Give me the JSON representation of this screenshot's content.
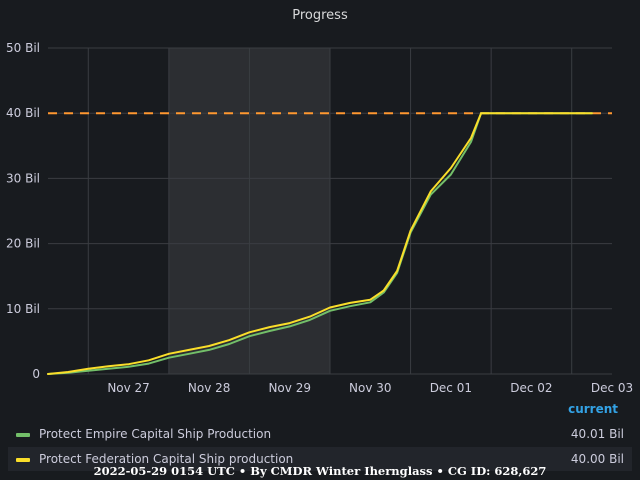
{
  "chart_data": {
    "type": "line",
    "title": "Progress",
    "x_ticks": [
      "Nov 27",
      "Nov 28",
      "Nov 29",
      "Nov 30",
      "Dec 01",
      "Dec 02",
      "Dec 03"
    ],
    "x_range": [
      "2021-11-26 12:00",
      "2021-12-03 12:00"
    ],
    "y_ticks": [
      "0",
      "10 Bil",
      "20 Bil",
      "30 Bil",
      "40 Bil",
      "50 Bil"
    ],
    "ylim": [
      0,
      50
    ],
    "y_unit": "Bil",
    "grid": true,
    "highlight_region": {
      "from": "2021-11-28 00:00",
      "to": "2021-11-30 00:00"
    },
    "threshold": {
      "value": 40,
      "style": "dashed",
      "color": "#FF9830"
    },
    "series": [
      {
        "name": "Protect Empire Capital Ship Production",
        "color": "#73BF69",
        "points": [
          [
            "2021-11-26 12:00",
            0
          ],
          [
            "2021-11-26 18:00",
            0.2
          ],
          [
            "2021-11-27 00:00",
            0.5
          ],
          [
            "2021-11-27 06:00",
            0.8
          ],
          [
            "2021-11-27 12:00",
            1.1
          ],
          [
            "2021-11-27 18:00",
            1.6
          ],
          [
            "2021-11-28 00:00",
            2.5
          ],
          [
            "2021-11-28 06:00",
            3.1
          ],
          [
            "2021-11-28 12:00",
            3.7
          ],
          [
            "2021-11-28 18:00",
            4.6
          ],
          [
            "2021-11-29 00:00",
            5.8
          ],
          [
            "2021-11-29 06:00",
            6.6
          ],
          [
            "2021-11-29 12:00",
            7.3
          ],
          [
            "2021-11-29 18:00",
            8.3
          ],
          [
            "2021-11-30 00:00",
            9.7
          ],
          [
            "2021-11-30 06:00",
            10.4
          ],
          [
            "2021-11-30 12:00",
            11.0
          ],
          [
            "2021-11-30 16:00",
            12.5
          ],
          [
            "2021-11-30 20:00",
            15.5
          ],
          [
            "2021-12-01 00:00",
            21.7
          ],
          [
            "2021-12-01 06:00",
            27.5
          ],
          [
            "2021-12-01 12:00",
            30.6
          ],
          [
            "2021-12-01 18:00",
            35.6
          ],
          [
            "2021-12-01 21:00",
            40.0
          ],
          [
            "2021-12-02 00:00",
            40.0
          ],
          [
            "2021-12-03 00:00",
            40.0
          ],
          [
            "2021-12-03 06:00",
            40.0
          ]
        ]
      },
      {
        "name": "Protect Federation Capital Ship production",
        "color": "#FADE2A",
        "points": [
          [
            "2021-11-26 12:00",
            0
          ],
          [
            "2021-11-26 18:00",
            0.3
          ],
          [
            "2021-11-27 00:00",
            0.8
          ],
          [
            "2021-11-27 06:00",
            1.2
          ],
          [
            "2021-11-27 12:00",
            1.5
          ],
          [
            "2021-11-27 18:00",
            2.1
          ],
          [
            "2021-11-28 00:00",
            3.1
          ],
          [
            "2021-11-28 06:00",
            3.7
          ],
          [
            "2021-11-28 12:00",
            4.3
          ],
          [
            "2021-11-28 18:00",
            5.2
          ],
          [
            "2021-11-29 00:00",
            6.4
          ],
          [
            "2021-11-29 06:00",
            7.2
          ],
          [
            "2021-11-29 12:00",
            7.8
          ],
          [
            "2021-11-29 18:00",
            8.8
          ],
          [
            "2021-11-30 00:00",
            10.2
          ],
          [
            "2021-11-30 06:00",
            10.9
          ],
          [
            "2021-11-30 12:00",
            11.4
          ],
          [
            "2021-11-30 16:00",
            12.8
          ],
          [
            "2021-11-30 20:00",
            15.8
          ],
          [
            "2021-12-01 00:00",
            22.0
          ],
          [
            "2021-12-01 06:00",
            28.0
          ],
          [
            "2021-12-01 12:00",
            31.6
          ],
          [
            "2021-12-01 18:00",
            36.2
          ],
          [
            "2021-12-01 21:00",
            40.0
          ],
          [
            "2021-12-02 00:00",
            40.0
          ],
          [
            "2021-12-03 00:00",
            40.0
          ],
          [
            "2021-12-03 06:00",
            40.0
          ]
        ]
      }
    ]
  },
  "legend": {
    "header": "current",
    "rows": [
      {
        "name": "Protect Empire Capital Ship Production",
        "value": "40.01 Bil",
        "color": "#73BF69"
      },
      {
        "name": "Protect Federation Capital Ship production",
        "value": "40.00 Bil",
        "color": "#FADE2A"
      }
    ]
  },
  "footer": "2022-05-29 0154 UTC • By CMDR Winter Iherngl​ass • CG ID: 628,627"
}
